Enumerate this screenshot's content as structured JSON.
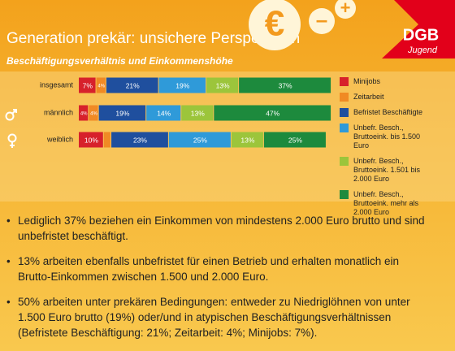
{
  "chart_data": {
    "type": "stacked-bar-horizontal",
    "title": "Generation prekär: unsichere Perspektiven",
    "subtitle": "Beschäftigungsverhältnis und Einkommenshöhe",
    "categories": [
      "insgesamt",
      "männlich",
      "weiblich"
    ],
    "xlim": [
      0,
      100
    ],
    "series": [
      {
        "name": "Minijobs",
        "color": "#d7212b",
        "values": [
          7,
          4,
          10
        ],
        "value_labels": [
          "7%",
          "4%",
          "10%"
        ]
      },
      {
        "name": "Zeitarbeit",
        "color": "#f08a24",
        "values": [
          4,
          4,
          3
        ],
        "value_labels": [
          "4%",
          "4%",
          null
        ]
      },
      {
        "name": "Befristet Beschäftigte",
        "color": "#1f4f9e",
        "values": [
          21,
          19,
          23
        ],
        "value_labels": [
          "21%",
          "19%",
          "23%"
        ]
      },
      {
        "name": "Unbefr. Besch., Bruttoeink. bis 1.500 Euro",
        "color": "#2f9ad9",
        "values": [
          19,
          14,
          25
        ],
        "value_labels": [
          "19%",
          "14%",
          "25%"
        ]
      },
      {
        "name": "Unbefr. Besch., Bruttoeink. 1.501 bis 2.000 Euro",
        "color": "#9cc53b",
        "values": [
          13,
          13,
          13
        ],
        "value_labels": [
          "13%",
          "13%",
          "13%"
        ]
      },
      {
        "name": "Unbefr. Besch., Bruttoeink. mehr als 2.000 Euro",
        "color": "#1d8a3d",
        "values": [
          37,
          47,
          25
        ],
        "value_labels": [
          "37%",
          "47%",
          "25%"
        ]
      }
    ]
  },
  "icons": [
    "€",
    "–",
    "+"
  ],
  "logo": {
    "text": "DGB",
    "subtext": "Jugend"
  },
  "bullets": [
    "Lediglich 37% beziehen ein Einkommen von mindestens 2.000 Euro brutto und sind unbefristet beschäftigt.",
    "13% arbeiten ebenfalls unbefristet für einen Betrieb und erhalten monatlich ein Brutto-Einkommen zwischen 1.500 und 2.000 Euro.",
    "50% arbeiten unter prekären Bedingungen: entweder zu Niedriglöhnen von unter 1.500 Euro brutto (19%) oder/und in atypischen Beschäftigungsverhältnissen (Befristete Beschäftigung: 21%; Zeitarbeit: 4%; Minijobs: 7%)."
  ]
}
